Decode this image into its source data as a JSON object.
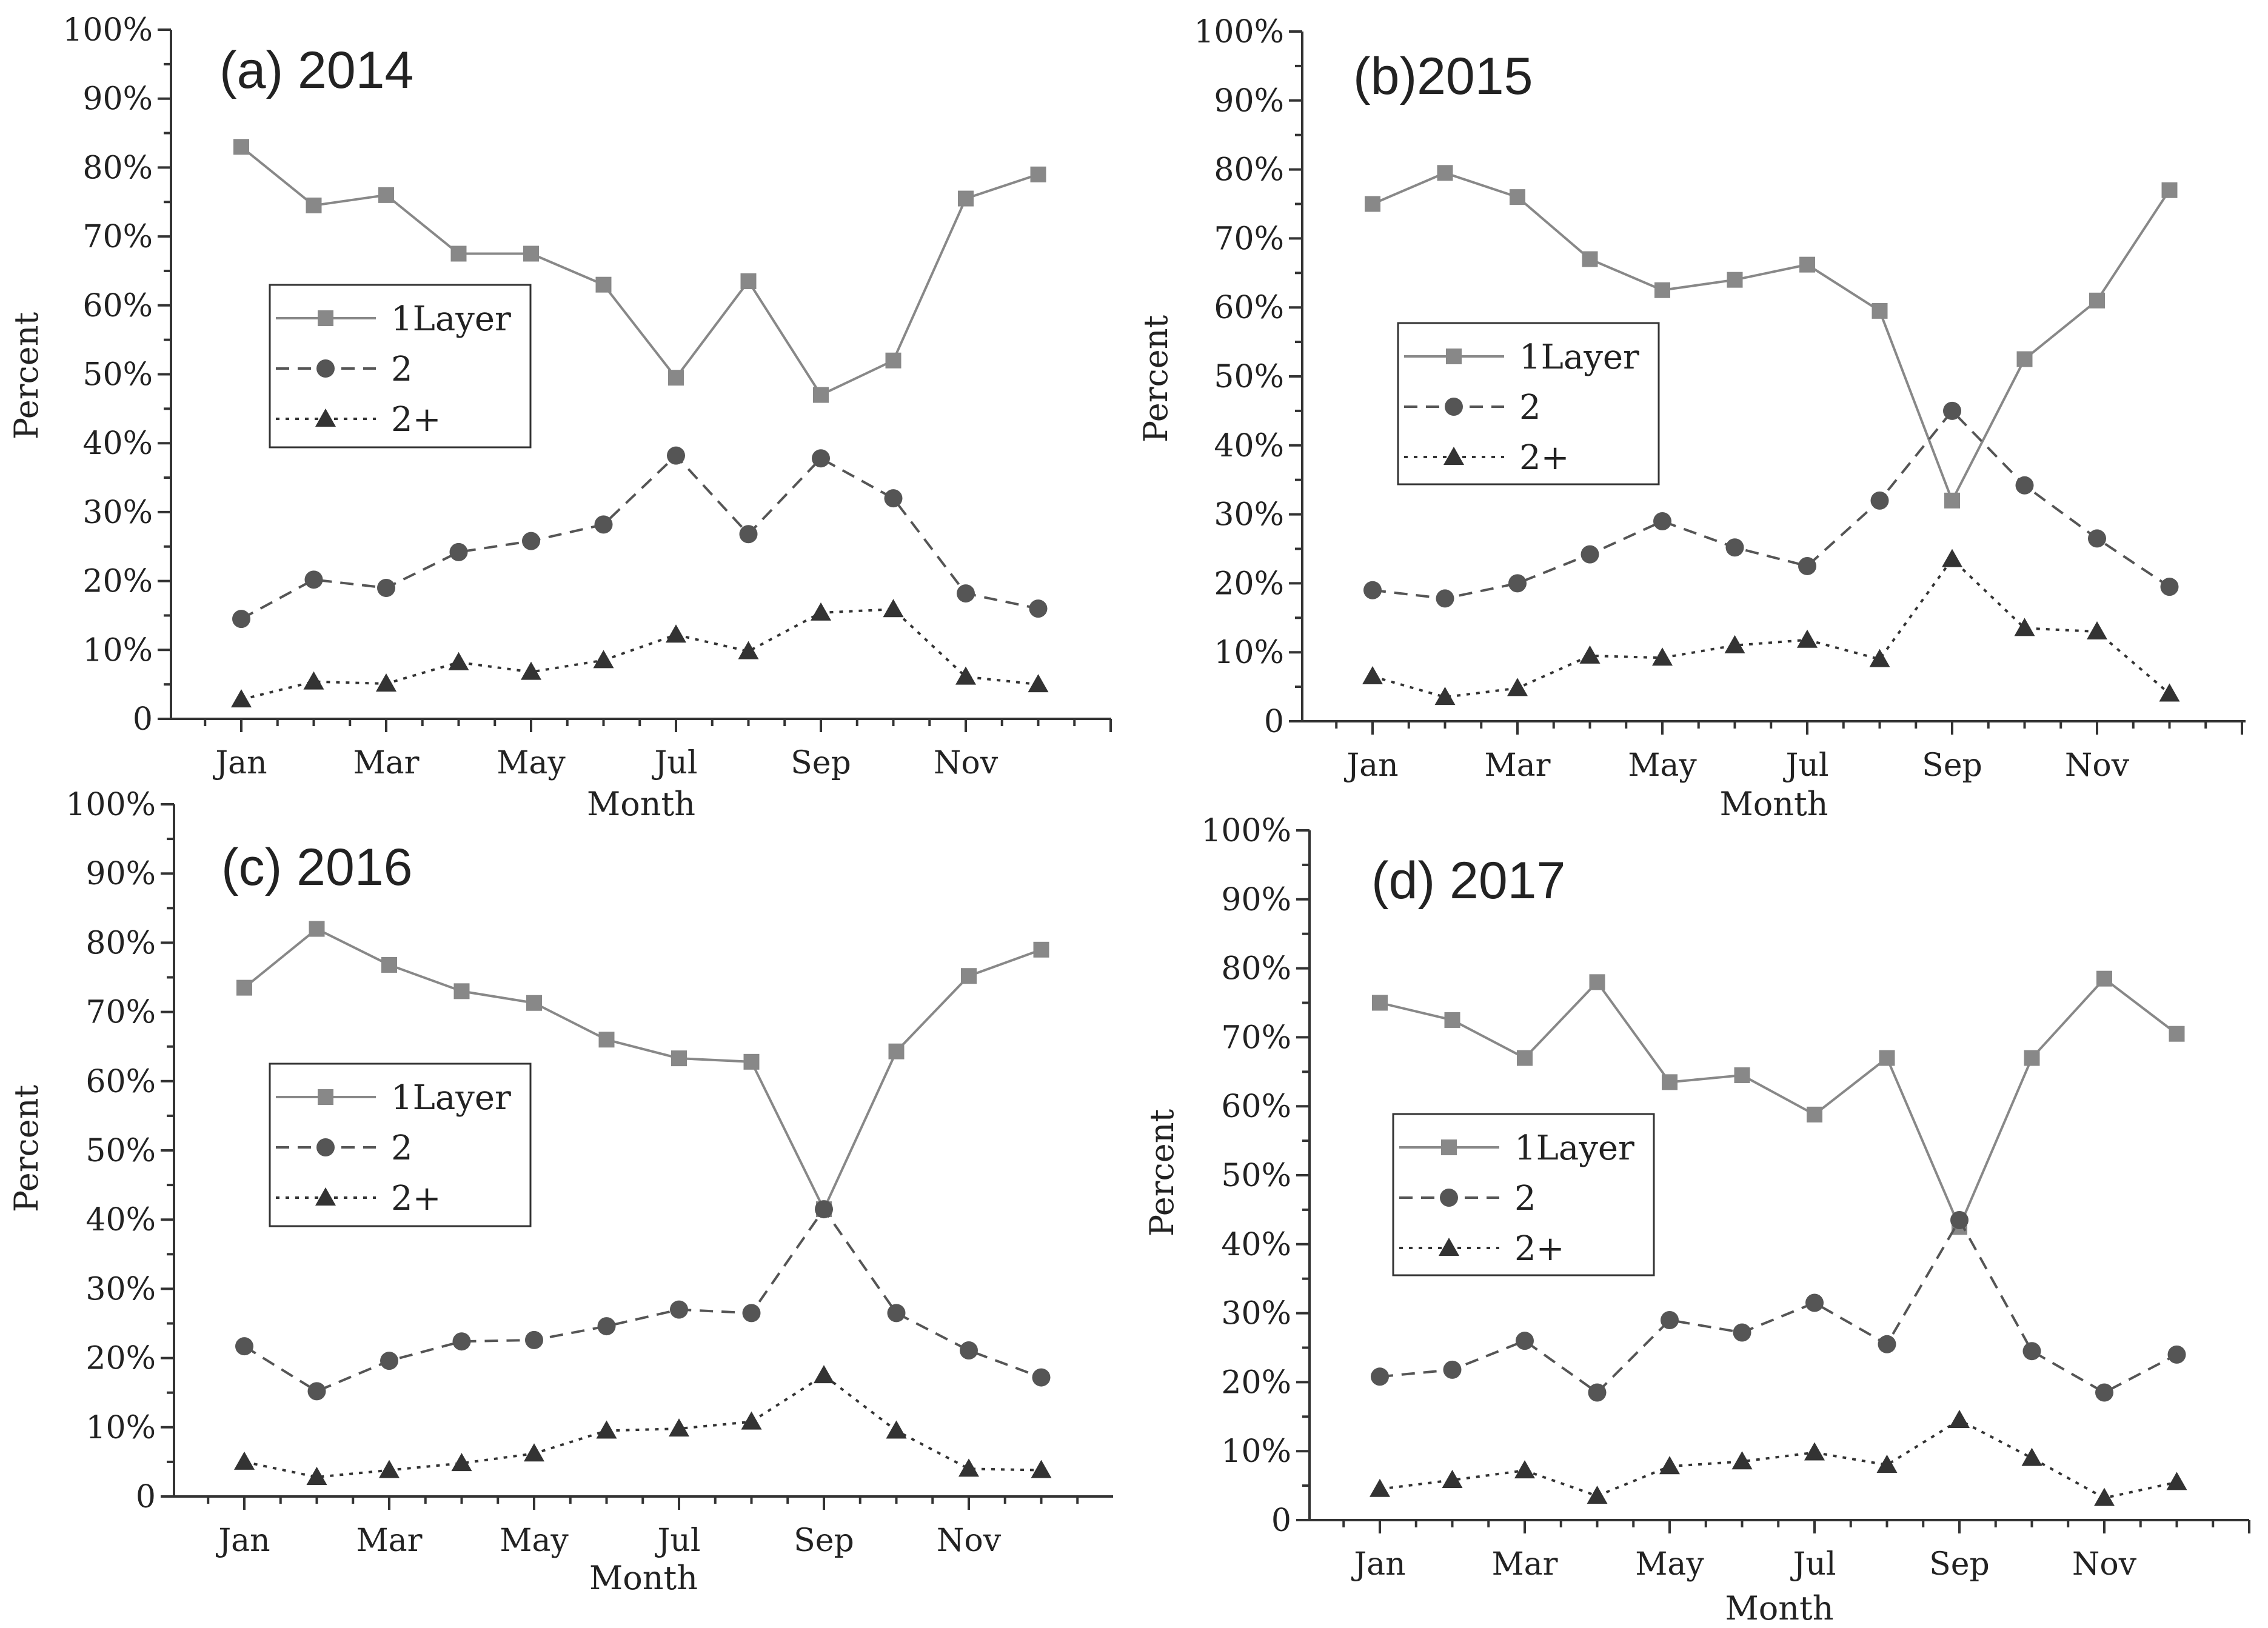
{
  "chart_data": [
    {
      "type": "line",
      "title": "(a) 2014",
      "xlabel": "Month",
      "ylabel": "Percent",
      "categories": [
        "Jan",
        "Feb",
        "Mar",
        "Apr",
        "May",
        "Jun",
        "Jul",
        "Aug",
        "Sep",
        "Oct",
        "Nov",
        "Dec"
      ],
      "xtick_labels": [
        "Jan",
        "Mar",
        "May",
        "Jul",
        "Sep",
        "Nov"
      ],
      "ytick_labels": [
        "0",
        "10%",
        "20%",
        "30%",
        "40%",
        "50%",
        "60%",
        "70%",
        "80%",
        "90%",
        "100%"
      ],
      "ylim": [
        0,
        100
      ],
      "legend_position": "center-left",
      "series": [
        {
          "name": "1Layer",
          "marker": "square",
          "dash": "solid",
          "color": "#888888",
          "values": [
            83,
            74.5,
            76,
            67.5,
            67.5,
            63,
            49.5,
            63.5,
            47,
            52,
            75.5,
            79
          ]
        },
        {
          "name": "2",
          "marker": "circle",
          "dash": "dashed",
          "color": "#555555",
          "values": [
            14.5,
            20.2,
            19,
            24.2,
            25.8,
            28.2,
            38.2,
            26.8,
            37.8,
            32,
            18.2,
            16
          ]
        },
        {
          "name": "2+",
          "marker": "triangle",
          "dash": "dotted",
          "color": "#333333",
          "values": [
            2.8,
            5.4,
            5.1,
            8.2,
            6.8,
            8.5,
            12.2,
            9.8,
            15.4,
            15.9,
            6.1,
            5
          ]
        }
      ]
    },
    {
      "type": "line",
      "title": "(b)2015",
      "xlabel": "Month",
      "ylabel": "Percent",
      "categories": [
        "Jan",
        "Feb",
        "Mar",
        "Apr",
        "May",
        "Jun",
        "Jul",
        "Aug",
        "Sep",
        "Oct",
        "Nov",
        "Dec"
      ],
      "xtick_labels": [
        "Jan",
        "Mar",
        "May",
        "Jul",
        "Sep",
        "Nov"
      ],
      "ytick_labels": [
        "0",
        "10%",
        "20%",
        "30%",
        "40%",
        "50%",
        "60%",
        "70%",
        "80%",
        "90%",
        "100%"
      ],
      "ylim": [
        0,
        100
      ],
      "legend_position": "center-left",
      "series": [
        {
          "name": "1Layer",
          "marker": "square",
          "dash": "solid",
          "color": "#888888",
          "values": [
            75,
            79.5,
            76,
            67,
            62.5,
            64,
            66.2,
            59.5,
            32,
            52.5,
            61,
            77
          ]
        },
        {
          "name": "2",
          "marker": "circle",
          "dash": "dashed",
          "color": "#555555",
          "values": [
            19,
            17.8,
            20,
            24.2,
            29,
            25.2,
            22.5,
            32,
            45,
            34.2,
            26.5,
            19.5
          ]
        },
        {
          "name": "2+",
          "marker": "triangle",
          "dash": "dotted",
          "color": "#333333",
          "values": [
            6.5,
            3.5,
            4.8,
            9.5,
            9.2,
            11,
            11.8,
            9,
            23.5,
            13.5,
            13,
            4
          ]
        }
      ]
    },
    {
      "type": "line",
      "title": "(c) 2016",
      "xlabel": "Month",
      "ylabel": "Percent",
      "categories": [
        "Jan",
        "Feb",
        "Mar",
        "Apr",
        "May",
        "Jun",
        "Jul",
        "Aug",
        "Sep",
        "Oct",
        "Nov",
        "Dec"
      ],
      "xtick_labels": [
        "Jan",
        "Mar",
        "May",
        "Jul",
        "Sep",
        "Nov"
      ],
      "ytick_labels": [
        "0",
        "10%",
        "20%",
        "30%",
        "40%",
        "50%",
        "60%",
        "70%",
        "80%",
        "90%",
        "100%"
      ],
      "ylim": [
        0,
        100
      ],
      "legend_position": "center-left",
      "series": [
        {
          "name": "1Layer",
          "marker": "square",
          "dash": "solid",
          "color": "#888888",
          "values": [
            73.5,
            82,
            76.8,
            73,
            71.3,
            66,
            63.3,
            62.8,
            41.5,
            64.3,
            75.2,
            79
          ]
        },
        {
          "name": "2",
          "marker": "circle",
          "dash": "dashed",
          "color": "#555555",
          "values": [
            21.7,
            15.2,
            19.6,
            22.4,
            22.6,
            24.6,
            27,
            26.5,
            41.5,
            26.5,
            21.1,
            17.2
          ]
        },
        {
          "name": "2+",
          "marker": "triangle",
          "dash": "dotted",
          "color": "#333333",
          "values": [
            5,
            2.8,
            3.8,
            4.8,
            6.2,
            9.5,
            9.8,
            10.8,
            17.5,
            9.5,
            4,
            3.8
          ]
        }
      ]
    },
    {
      "type": "line",
      "title": "(d) 2017",
      "xlabel": "Month",
      "ylabel": "Percent",
      "categories": [
        "Jan",
        "Feb",
        "Mar",
        "Apr",
        "May",
        "Jun",
        "Jul",
        "Aug",
        "Sep",
        "Oct",
        "Nov",
        "Dec"
      ],
      "xtick_labels": [
        "Jan",
        "Mar",
        "May",
        "Jul",
        "Sep",
        "Nov"
      ],
      "ytick_labels": [
        "0",
        "10%",
        "20%",
        "30%",
        "40%",
        "50%",
        "60%",
        "70%",
        "80%",
        "90%",
        "100%"
      ],
      "ylim": [
        0,
        100
      ],
      "legend_position": "center-left",
      "series": [
        {
          "name": "1Layer",
          "marker": "square",
          "dash": "solid",
          "color": "#888888",
          "values": [
            75,
            72.5,
            67,
            78,
            63.5,
            64.5,
            58.8,
            67,
            42.5,
            67,
            78.5,
            70.5
          ]
        },
        {
          "name": "2",
          "marker": "circle",
          "dash": "dashed",
          "color": "#555555",
          "values": [
            20.8,
            21.8,
            26,
            18.5,
            29,
            27.2,
            31.5,
            25.5,
            43.5,
            24.5,
            18.5,
            24
          ]
        },
        {
          "name": "2+",
          "marker": "triangle",
          "dash": "dotted",
          "color": "#333333",
          "values": [
            4.5,
            5.8,
            7.2,
            3.5,
            7.8,
            8.5,
            9.8,
            8,
            14.5,
            9,
            3.2,
            5.5
          ]
        }
      ]
    }
  ]
}
